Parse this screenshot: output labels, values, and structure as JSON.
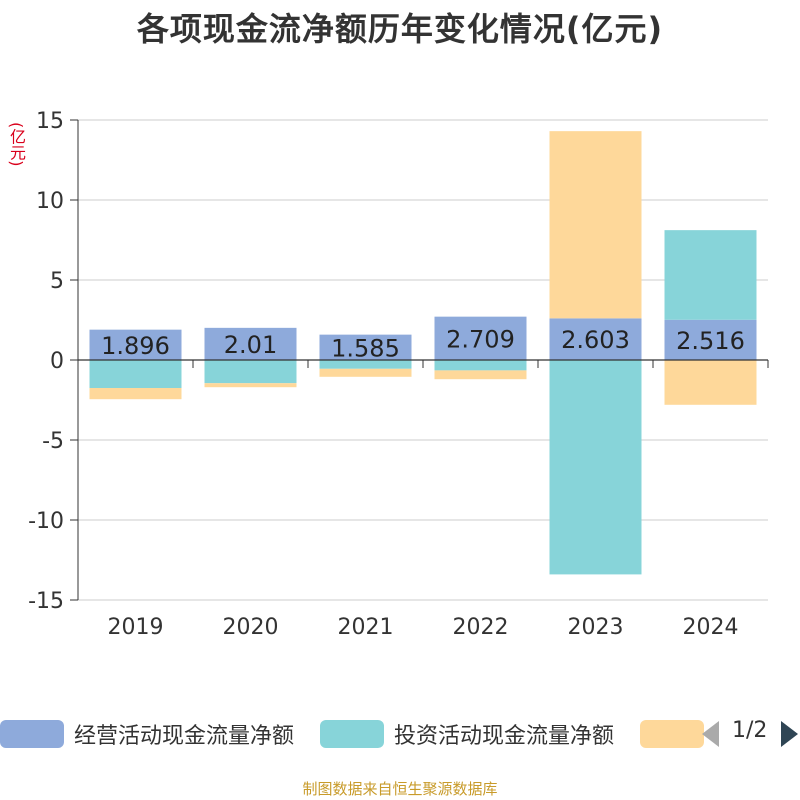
{
  "title": "各项现金流净额历年变化情况(亿元)",
  "unit_label": "(亿元)",
  "legend": {
    "items": [
      {
        "label": "经营活动现金流量净额",
        "color": "#8eaadb"
      },
      {
        "label": "投资活动现金流量净额",
        "color": "#87d4d9"
      },
      {
        "label": "",
        "color": "#fed89a"
      }
    ],
    "page_indicator": "1/2"
  },
  "footer": "制图数据来自恒生聚源数据库",
  "chart_data": {
    "type": "bar",
    "stacked": true,
    "categories": [
      "2019",
      "2020",
      "2021",
      "2022",
      "2023",
      "2024"
    ],
    "ylim": [
      -15,
      15
    ],
    "yticks": [
      15,
      10,
      5,
      0,
      -5,
      -10,
      -15
    ],
    "grid": true,
    "legend_position": "bottom",
    "series": [
      {
        "name": "经营活动现金流量净额",
        "color": "#8eaadb",
        "values": [
          1.896,
          2.01,
          1.585,
          2.709,
          2.603,
          2.516
        ],
        "show_labels": true
      },
      {
        "name": "投资活动现金流量净额",
        "color": "#87d4d9",
        "values": [
          -1.75,
          -1.45,
          -0.55,
          -0.65,
          -13.4,
          5.6
        ],
        "show_labels": false
      },
      {
        "color": "#fed89a",
        "values": [
          -0.7,
          -0.25,
          -0.5,
          -0.55,
          11.7,
          -2.8
        ],
        "show_labels": false
      }
    ]
  }
}
